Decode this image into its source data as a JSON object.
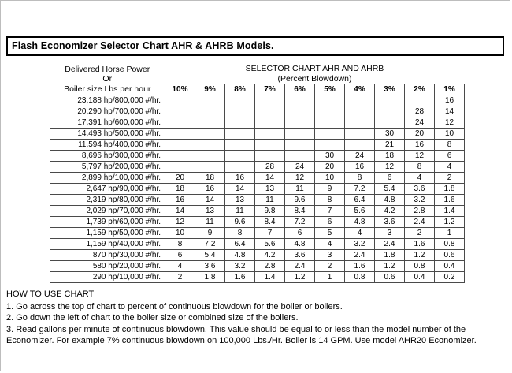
{
  "title": "Flash Economizer Selector Chart AHR & AHRB Models.",
  "header": {
    "left_lines": [
      "Delivered Horse Power",
      "Or",
      "Boiler size Lbs per hour"
    ],
    "right_lines": [
      "SELECTOR CHART AHR AND AHRB",
      "(Percent Blowdown)"
    ]
  },
  "table": {
    "columns": [
      "10%",
      "9%",
      "8%",
      "7%",
      "6%",
      "5%",
      "4%",
      "3%",
      "2%",
      "1%"
    ],
    "rows": [
      {
        "label": "23,188 hp/800,000 #/hr.",
        "values": [
          "",
          "",
          "",
          "",
          "",
          "",
          "",
          "",
          "",
          "16"
        ]
      },
      {
        "label": "20,290 hp/700,000 #/hr.",
        "values": [
          "",
          "",
          "",
          "",
          "",
          "",
          "",
          "",
          "28",
          "14"
        ]
      },
      {
        "label": "17,391 hp/600,000 #/hr.",
        "values": [
          "",
          "",
          "",
          "",
          "",
          "",
          "",
          "",
          "24",
          "12"
        ]
      },
      {
        "label": "14,493 hp/500,000 #/hr.",
        "values": [
          "",
          "",
          "",
          "",
          "",
          "",
          "",
          "30",
          "20",
          "10"
        ]
      },
      {
        "label": "11,594 hp/400,000 #/hr.",
        "values": [
          "",
          "",
          "",
          "",
          "",
          "",
          "",
          "21",
          "16",
          "8"
        ]
      },
      {
        "label": "8,696 hp/300,000 #/hr.",
        "values": [
          "",
          "",
          "",
          "",
          "",
          "30",
          "24",
          "18",
          "12",
          "6"
        ]
      },
      {
        "label": "5,797 hp/200,000 #/hr.",
        "values": [
          "",
          "",
          "",
          "28",
          "24",
          "20",
          "16",
          "12",
          "8",
          "4"
        ]
      },
      {
        "label": "2,899 hp/100,000 #/hr.",
        "values": [
          "20",
          "18",
          "16",
          "14",
          "12",
          "10",
          "8",
          "6",
          "4",
          "2"
        ]
      },
      {
        "label": "2,647 hp/90,000 #/hr.",
        "values": [
          "18",
          "16",
          "14",
          "13",
          "11",
          "9",
          "7.2",
          "5.4",
          "3.6",
          "1.8"
        ]
      },
      {
        "label": "2,319 hp/80,000 #/hr.",
        "values": [
          "16",
          "14",
          "13",
          "11",
          "9.6",
          "8",
          "6.4",
          "4.8",
          "3.2",
          "1.6"
        ]
      },
      {
        "label": "2,029 hp/70,000 #/hr.",
        "values": [
          "14",
          "13",
          "11",
          "9.8",
          "8.4",
          "7",
          "5.6",
          "4.2",
          "2.8",
          "1.4"
        ]
      },
      {
        "label": "1,739 ph/60,000 #/hr.",
        "values": [
          "12",
          "11",
          "9.6",
          "8.4",
          "7.2",
          "6",
          "4.8",
          "3.6",
          "2.4",
          "1.2"
        ]
      },
      {
        "label": "1,159 hp/50,000 #/hr.",
        "values": [
          "10",
          "9",
          "8",
          "7",
          "6",
          "5",
          "4",
          "3",
          "2",
          "1"
        ]
      },
      {
        "label": "1,159 hp/40,000 #/hr.",
        "values": [
          "8",
          "7.2",
          "6.4",
          "5.6",
          "4.8",
          "4",
          "3.2",
          "2.4",
          "1.6",
          "0.8"
        ]
      },
      {
        "label": "870 hp/30,000 #/hr.",
        "values": [
          "6",
          "5.4",
          "4.8",
          "4.2",
          "3.6",
          "3",
          "2.4",
          "1.8",
          "1.2",
          "0.6"
        ]
      },
      {
        "label": "580 hp/20,000 #/hr.",
        "values": [
          "4",
          "3.6",
          "3.2",
          "2.8",
          "2.4",
          "2",
          "1.6",
          "1.2",
          "0.8",
          "0.4"
        ]
      },
      {
        "label": "290 hp/10,000 #/hr.",
        "values": [
          "2",
          "1.8",
          "1.6",
          "1.4",
          "1.2",
          "1",
          "0.8",
          "0.6",
          "0.4",
          "0.2"
        ]
      }
    ]
  },
  "instructions": {
    "heading": "HOW TO USE CHART",
    "lines": [
      "1. Go across the top of chart to percent of continuous blowdown for the boiler or boilers.",
      "2. Go down the left of chart to the boiler size or combined size of the boilers.",
      "3. Read gallons per minute of continuous blowdown. This value should be equal to or less than the model number of the Economizer. For example 7% continuous blowdown on 100,000 Lbs./Hr. Boiler is 14 GPM. Use model AHR20 Economizer."
    ]
  }
}
